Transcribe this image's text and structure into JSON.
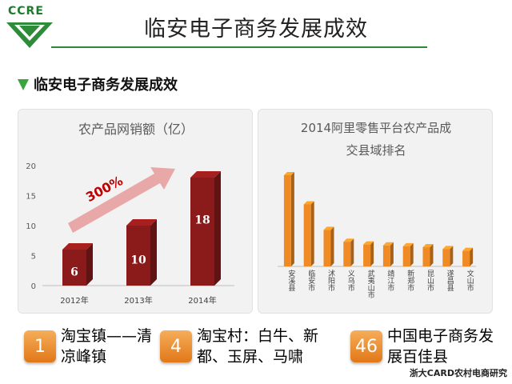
{
  "logo": {
    "text": "CCRE"
  },
  "page_title": "临安电子商务发展成效",
  "subtitle": "临安电子商务发展成效",
  "chart_data": [
    {
      "type": "bar",
      "title": "农产品网销额（亿）",
      "categories": [
        "2012年",
        "2013年",
        "2014年"
      ],
      "values": [
        6,
        10,
        18
      ],
      "ylim": [
        0,
        20
      ],
      "yticks": [
        "0",
        "5",
        "10",
        "15",
        "20"
      ],
      "annotation": "300%",
      "color": "#8b1a1a"
    },
    {
      "type": "bar",
      "title_lines": [
        "2014阿里零售平台农产品成",
        "交县域排名"
      ],
      "categories": [
        "安溪县",
        "临安市",
        "沭阳市",
        "义乌市",
        "武夷山市",
        "靖江市",
        "新郑市",
        "昆山市",
        "遂昌县",
        "文山市"
      ],
      "values": [
        100,
        68,
        40,
        27,
        24,
        23,
        22,
        21,
        19,
        17
      ],
      "color": "#f08a24"
    }
  ],
  "highlights": [
    {
      "number": "1",
      "text": "淘宝镇——清凉峰镇"
    },
    {
      "number": "4",
      "text": "淘宝村：白牛、新都、玉屏、马啸"
    },
    {
      "number": "46",
      "text": "中国电子商务发展百佳县"
    }
  ],
  "footer": "浙大CARD农村电商研究"
}
